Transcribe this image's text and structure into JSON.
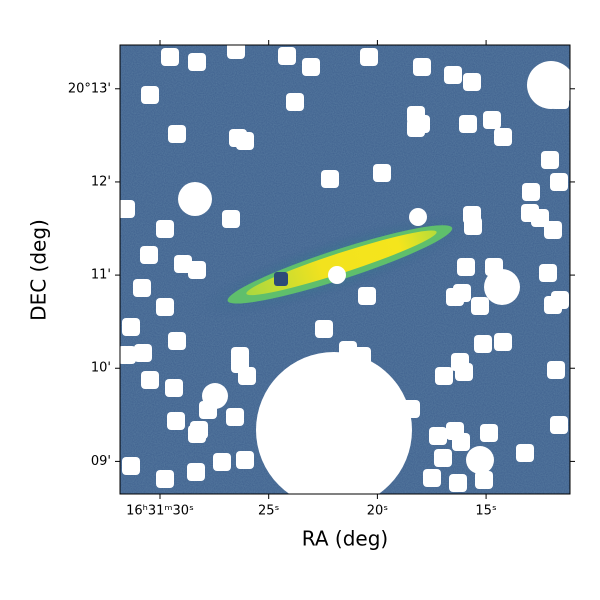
{
  "chart_data": {
    "type": "image",
    "xlabel": "RA (deg)",
    "ylabel": "DEC (deg)",
    "xlim": [
      31.84,
      11.14
    ],
    "xticks": [
      {
        "value": 30,
        "label": "16ʰ31ᵐ30ˢ"
      },
      {
        "value": 25,
        "label": "25ˢ"
      },
      {
        "value": 20,
        "label": "20ˢ"
      },
      {
        "value": 15,
        "label": "15ˢ"
      }
    ],
    "ylim": [
      8.65,
      13.47
    ],
    "yticks": [
      {
        "value": 13,
        "label": "20°13'"
      },
      {
        "value": 12,
        "label": "12'"
      },
      {
        "value": 11,
        "label": "11'"
      },
      {
        "value": 10,
        "label": "10'"
      },
      {
        "value": 9,
        "label": "09'"
      }
    ]
  }
}
